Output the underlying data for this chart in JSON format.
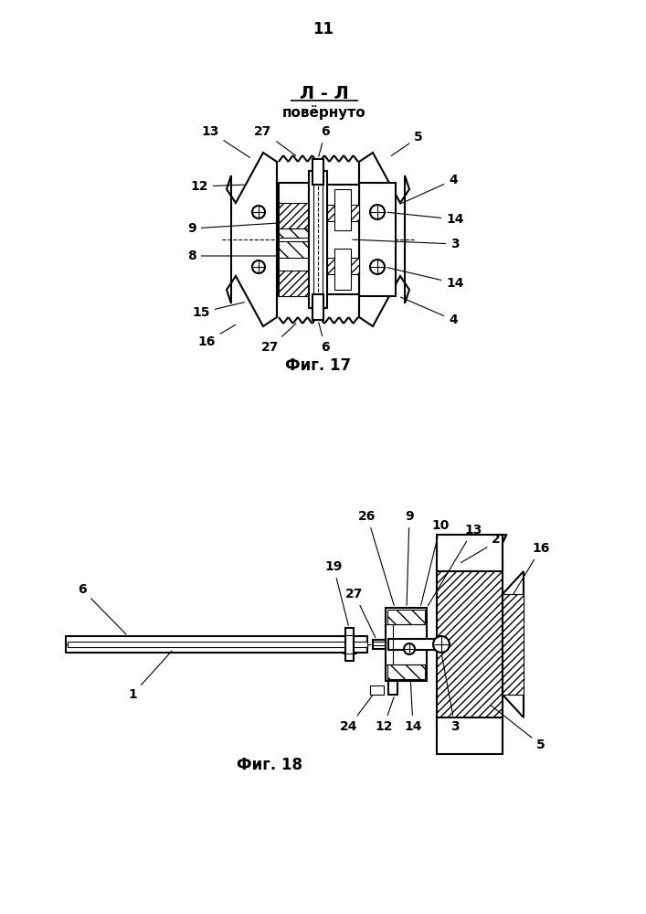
{
  "page_number": "11",
  "fig17_title": "Л - Л",
  "fig17_subtitle": "повёрнуто",
  "fig17_caption": "Фиг. 17",
  "fig18_caption": "Фиг. 18",
  "bg_color": "#ffffff",
  "line_color": "#000000"
}
